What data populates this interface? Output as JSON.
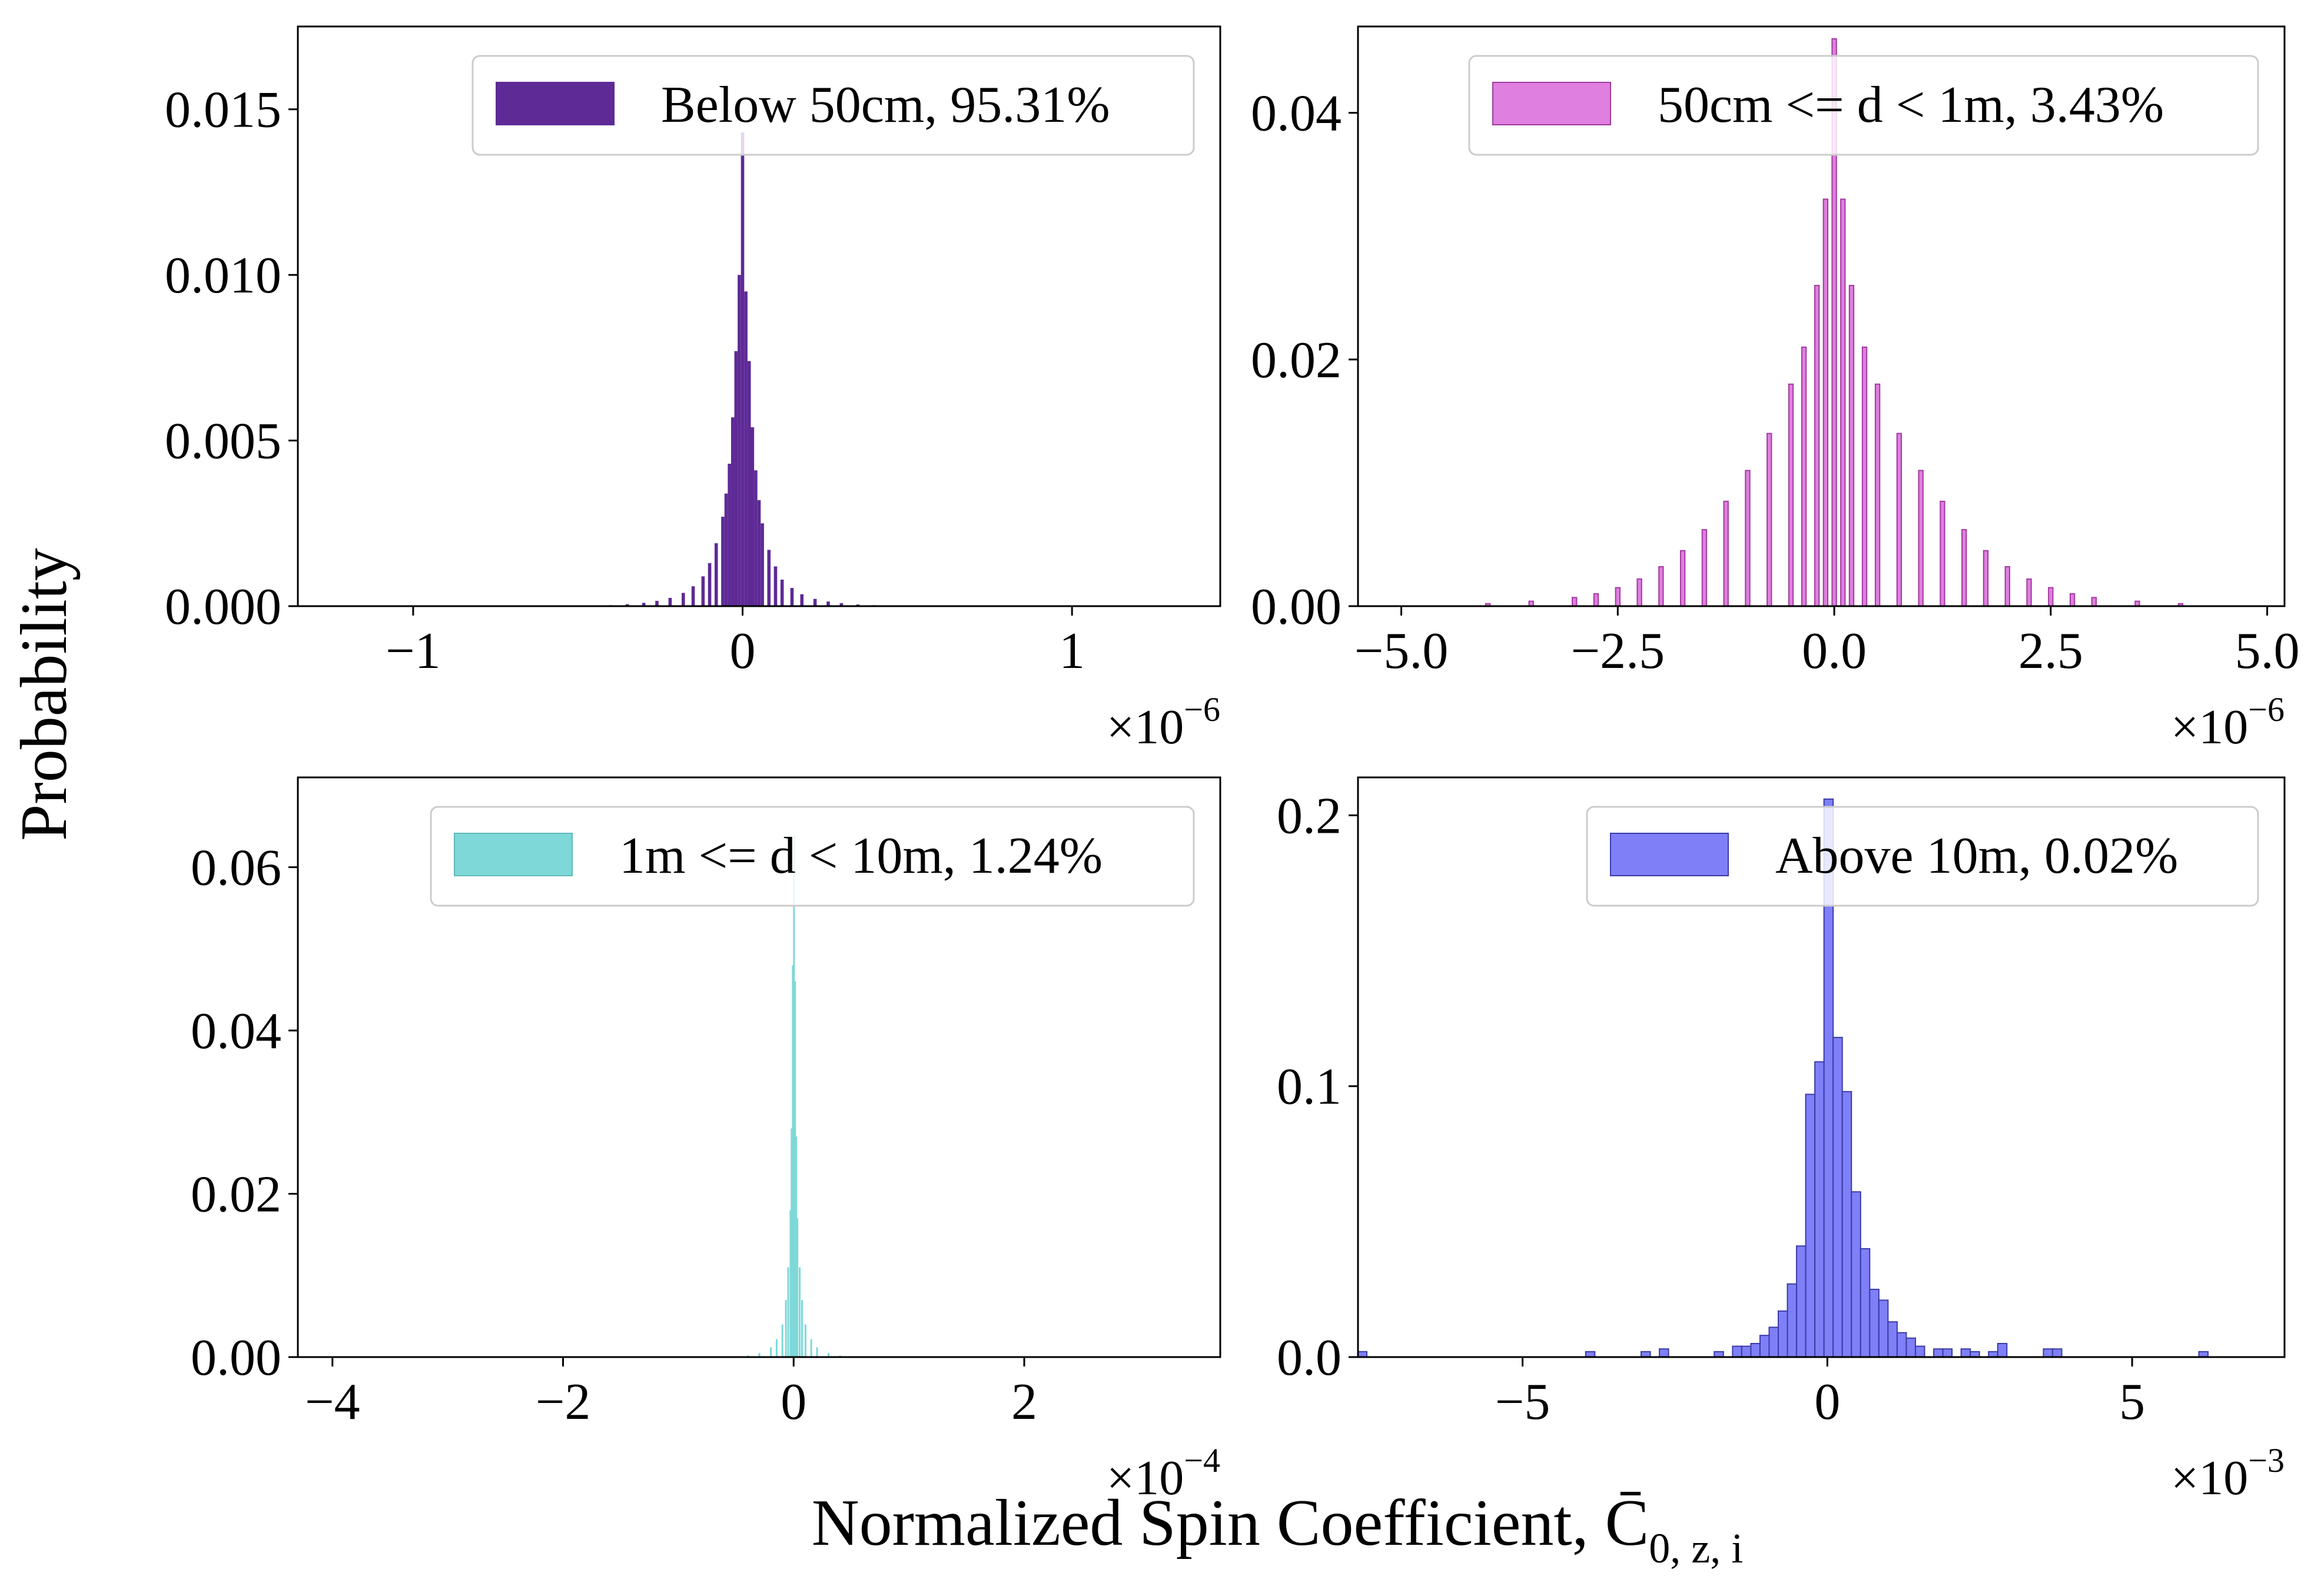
{
  "figure": {
    "ylabel": "Probability",
    "xlabel_main": "Normalized Spin Coefficient, ",
    "xlabel_symbol": "C̄",
    "xlabel_subscript": "0, z, i"
  },
  "chart_data": [
    {
      "type": "bar",
      "panel": "top-left",
      "legend": "Below 50cm, 95.31%",
      "legend_position": "upper right",
      "color": "#5e2a96",
      "edge_color": "#5e2a96",
      "x_multiplier": "×10",
      "x_exponent": "−6",
      "xlim": [
        -1.35,
        1.45
      ],
      "ylim": [
        0,
        0.0175
      ],
      "xticks": [
        -1,
        0,
        1
      ],
      "xtick_labels": [
        "−1",
        "0",
        "1"
      ],
      "yticks": [
        0.0,
        0.005,
        0.01,
        0.015
      ],
      "ytick_labels": [
        "0.000",
        "0.005",
        "0.010",
        "0.015"
      ],
      "x": [
        -0.4,
        -0.35,
        -0.3,
        -0.26,
        -0.22,
        -0.18,
        -0.15,
        -0.12,
        -0.1,
        -0.08,
        -0.06,
        -0.05,
        -0.04,
        -0.03,
        -0.02,
        -0.01,
        0.0,
        0.01,
        0.02,
        0.03,
        0.04,
        0.05,
        0.06,
        0.08,
        0.1,
        0.12,
        0.15,
        0.18,
        0.22,
        0.26,
        0.3,
        0.35,
        0.4
      ],
      "values": [
        3e-05,
        6e-05,
        0.0001,
        0.00016,
        0.00025,
        0.0004,
        0.0006,
        0.0009,
        0.0013,
        0.0019,
        0.0027,
        0.0034,
        0.0043,
        0.0057,
        0.0077,
        0.01,
        0.0143,
        0.0095,
        0.0074,
        0.0054,
        0.0041,
        0.0032,
        0.0025,
        0.0017,
        0.0012,
        0.0008,
        0.00055,
        0.00036,
        0.00022,
        0.00014,
        9e-05,
        5e-05,
        3e-05
      ]
    },
    {
      "type": "bar",
      "panel": "top-right",
      "legend": "50cm <= d < 1m, 3.43%",
      "legend_position": "upper right",
      "color": "#df7fdf",
      "edge_color": "#a23aa2",
      "x_multiplier": "×10",
      "x_exponent": "−6",
      "xlim": [
        -5.5,
        5.2
      ],
      "ylim": [
        0,
        0.047
      ],
      "xticks": [
        -5.0,
        -2.5,
        0.0,
        2.5,
        5.0
      ],
      "xtick_labels": [
        "−5.0",
        "−2.5",
        "0.0",
        "2.5",
        "5.0"
      ],
      "yticks": [
        0.0,
        0.02,
        0.04
      ],
      "ytick_labels": [
        "0.00",
        "0.02",
        "0.04"
      ],
      "x": [
        -4.0,
        -3.5,
        -3.0,
        -2.75,
        -2.5,
        -2.25,
        -2.0,
        -1.75,
        -1.5,
        -1.25,
        -1.0,
        -0.75,
        -0.5,
        -0.35,
        -0.2,
        -0.1,
        0.0,
        0.1,
        0.2,
        0.35,
        0.5,
        0.75,
        1.0,
        1.25,
        1.5,
        1.75,
        2.0,
        2.25,
        2.5,
        2.75,
        3.0,
        3.5,
        4.0
      ],
      "values": [
        0.0002,
        0.0004,
        0.0007,
        0.001,
        0.0015,
        0.0022,
        0.0032,
        0.0045,
        0.0062,
        0.0085,
        0.011,
        0.014,
        0.018,
        0.021,
        0.026,
        0.033,
        0.046,
        0.033,
        0.026,
        0.021,
        0.018,
        0.014,
        0.011,
        0.0085,
        0.0062,
        0.0045,
        0.0032,
        0.0022,
        0.0015,
        0.001,
        0.0007,
        0.0004,
        0.0002
      ]
    },
    {
      "type": "bar",
      "panel": "bottom-left",
      "legend": "1m <= d < 10m, 1.24%",
      "legend_position": "upper right",
      "color": "#7fd8d8",
      "edge_color": "#5fb8b8",
      "x_multiplier": "×10",
      "x_exponent": "−4",
      "xlim": [
        -4.3,
        3.7
      ],
      "ylim": [
        0,
        0.071
      ],
      "xticks": [
        -4,
        -2,
        0,
        2
      ],
      "xtick_labels": [
        "−4",
        "−2",
        "0",
        "2"
      ],
      "yticks": [
        0.0,
        0.02,
        0.04,
        0.06
      ],
      "ytick_labels": [
        "0.00",
        "0.02",
        "0.04",
        "0.06"
      ],
      "x": [
        -0.4,
        -0.3,
        -0.2,
        -0.15,
        -0.1,
        -0.07,
        -0.05,
        -0.03,
        -0.02,
        -0.01,
        0.0,
        0.01,
        0.02,
        0.03,
        0.05,
        0.07,
        0.1,
        0.15,
        0.2,
        0.3,
        0.4
      ],
      "values": [
        0.0002,
        0.0005,
        0.0012,
        0.0022,
        0.004,
        0.007,
        0.011,
        0.018,
        0.028,
        0.048,
        0.064,
        0.046,
        0.027,
        0.017,
        0.011,
        0.007,
        0.004,
        0.0022,
        0.0012,
        0.0005,
        0.0002
      ]
    },
    {
      "type": "bar",
      "panel": "bottom-right",
      "legend": "Above 10m, 0.02%",
      "legend_position": "upper right",
      "color": "#7f7ff7",
      "edge_color": "#3b3ba8",
      "x_multiplier": "×10",
      "x_exponent": "−3",
      "xlim": [
        -7.7,
        7.5
      ],
      "ylim": [
        0,
        0.214
      ],
      "xticks": [
        -5,
        0,
        5
      ],
      "xtick_labels": [
        "−5",
        "0",
        "5"
      ],
      "yticks": [
        0.0,
        0.1,
        0.2
      ],
      "ytick_labels": [
        "0.0",
        "0.1",
        "0.2"
      ],
      "x": [
        -7.63,
        -3.89,
        -2.98,
        -2.68,
        -1.78,
        -1.48,
        -1.33,
        -1.18,
        -1.03,
        -0.88,
        -0.73,
        -0.58,
        -0.43,
        -0.28,
        -0.13,
        0.02,
        0.17,
        0.32,
        0.47,
        0.62,
        0.77,
        0.92,
        1.07,
        1.22,
        1.37,
        1.52,
        1.82,
        1.97,
        2.27,
        2.42,
        2.72,
        2.87,
        3.62,
        3.77,
        6.17
      ],
      "values": [
        0.002,
        0.002,
        0.002,
        0.003,
        0.002,
        0.004,
        0.004,
        0.005,
        0.008,
        0.011,
        0.017,
        0.027,
        0.041,
        0.097,
        0.109,
        0.206,
        0.118,
        0.098,
        0.061,
        0.04,
        0.025,
        0.021,
        0.013,
        0.009,
        0.007,
        0.004,
        0.003,
        0.003,
        0.003,
        0.002,
        0.002,
        0.005,
        0.003,
        0.003,
        0.002
      ]
    }
  ]
}
